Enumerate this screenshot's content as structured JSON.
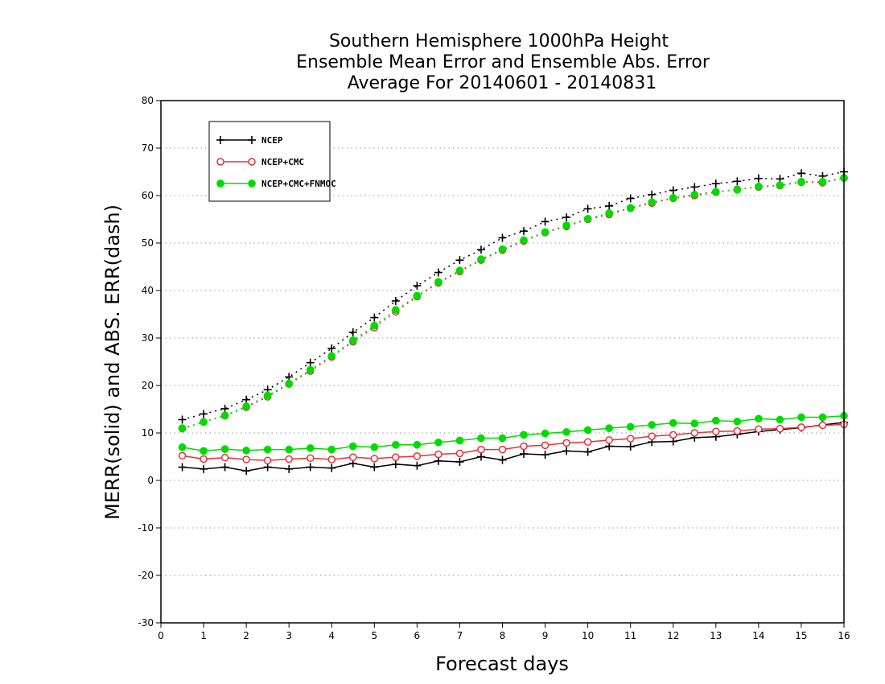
{
  "chart_data": {
    "type": "line",
    "title_lines": [
      "Southern Hemisphere 1000hPa Height",
      "Ensemble Mean Error and Ensemble Abs. Error",
      "Average For 20140601 - 20140831"
    ],
    "xlabel": "Forecast days",
    "ylabel": "MERR(solid) and ABS. ERR(dash)",
    "xlim": [
      0,
      16
    ],
    "ylim": [
      -30,
      80
    ],
    "xticks": [
      0,
      1,
      2,
      3,
      4,
      5,
      6,
      7,
      8,
      9,
      10,
      11,
      12,
      13,
      14,
      15,
      16
    ],
    "yticks": [
      -30,
      -20,
      -10,
      0,
      10,
      20,
      30,
      40,
      50,
      60,
      70,
      80
    ],
    "grid": "horizontal-dotted",
    "legend_position": "top-left",
    "x": [
      0.5,
      1,
      1.5,
      2,
      2.5,
      3,
      3.5,
      4,
      4.5,
      5,
      5.5,
      6,
      6.5,
      7,
      7.5,
      8,
      8.5,
      9,
      9.5,
      10,
      10.5,
      11,
      11.5,
      12,
      12.5,
      13,
      13.5,
      14,
      14.5,
      15,
      15.5,
      16
    ],
    "series": [
      {
        "name": "NCEP",
        "color": "#000000",
        "marker": "plus",
        "merr": [
          2.8,
          2.4,
          2.8,
          2.0,
          2.8,
          2.4,
          2.8,
          2.6,
          3.6,
          2.8,
          3.4,
          3.1,
          4.1,
          3.9,
          5.0,
          4.3,
          5.6,
          5.4,
          6.2,
          6.0,
          7.2,
          7.1,
          8.1,
          8.2,
          9.0,
          9.2,
          9.7,
          10.3,
          10.7,
          11.1,
          11.7,
          12.2
        ],
        "abs_err": [
          12.8,
          14.0,
          15.1,
          17.0,
          19.1,
          21.8,
          24.8,
          27.8,
          31.2,
          34.3,
          37.8,
          41.0,
          43.8,
          46.4,
          48.6,
          51.1,
          52.5,
          54.5,
          55.4,
          57.2,
          57.8,
          59.4,
          60.2,
          61.1,
          61.8,
          62.5,
          63.0,
          63.6,
          63.5,
          64.7,
          64.1,
          65.0
        ]
      },
      {
        "name": "NCEP+CMC",
        "color": "#e8303a",
        "marker": "open-circle",
        "merr": [
          5.2,
          4.5,
          4.8,
          4.4,
          4.2,
          4.5,
          4.7,
          4.4,
          4.9,
          4.6,
          4.9,
          5.1,
          5.5,
          5.7,
          6.5,
          6.5,
          7.2,
          7.4,
          7.9,
          8.1,
          8.5,
          8.8,
          9.3,
          9.6,
          10.0,
          10.3,
          10.4,
          10.8,
          10.9,
          11.2,
          11.6,
          11.8
        ],
        "abs_err": [
          10.9,
          12.3,
          13.6,
          15.4,
          17.6,
          20.3,
          23.0,
          26.0,
          29.2,
          32.2,
          35.5,
          38.7,
          41.6,
          44.0,
          46.4,
          48.5,
          50.4,
          52.2,
          53.5,
          55.0,
          56.0,
          57.3,
          58.4,
          59.4,
          60.0,
          60.7,
          61.3,
          61.8,
          62.1,
          62.8,
          62.7,
          63.7
        ]
      },
      {
        "name": "NCEP+CMC+FNMOC",
        "color": "#00dc00",
        "marker": "filled-circle",
        "merr": [
          7.0,
          6.2,
          6.6,
          6.3,
          6.5,
          6.5,
          6.8,
          6.5,
          7.2,
          7.0,
          7.5,
          7.5,
          8.0,
          8.4,
          8.9,
          8.9,
          9.6,
          9.9,
          10.2,
          10.6,
          11.0,
          11.3,
          11.7,
          12.1,
          12.0,
          12.6,
          12.4,
          13.0,
          12.8,
          13.3,
          13.3,
          13.6
        ],
        "abs_err": [
          11.0,
          12.3,
          13.7,
          15.6,
          17.9,
          20.4,
          23.3,
          26.2,
          29.5,
          32.6,
          35.9,
          38.9,
          41.8,
          44.2,
          46.6,
          48.7,
          50.6,
          52.3,
          53.7,
          55.1,
          56.3,
          57.4,
          58.6,
          59.5,
          60.2,
          60.8,
          61.2,
          61.9,
          62.2,
          62.9,
          62.9,
          63.7
        ]
      }
    ]
  }
}
